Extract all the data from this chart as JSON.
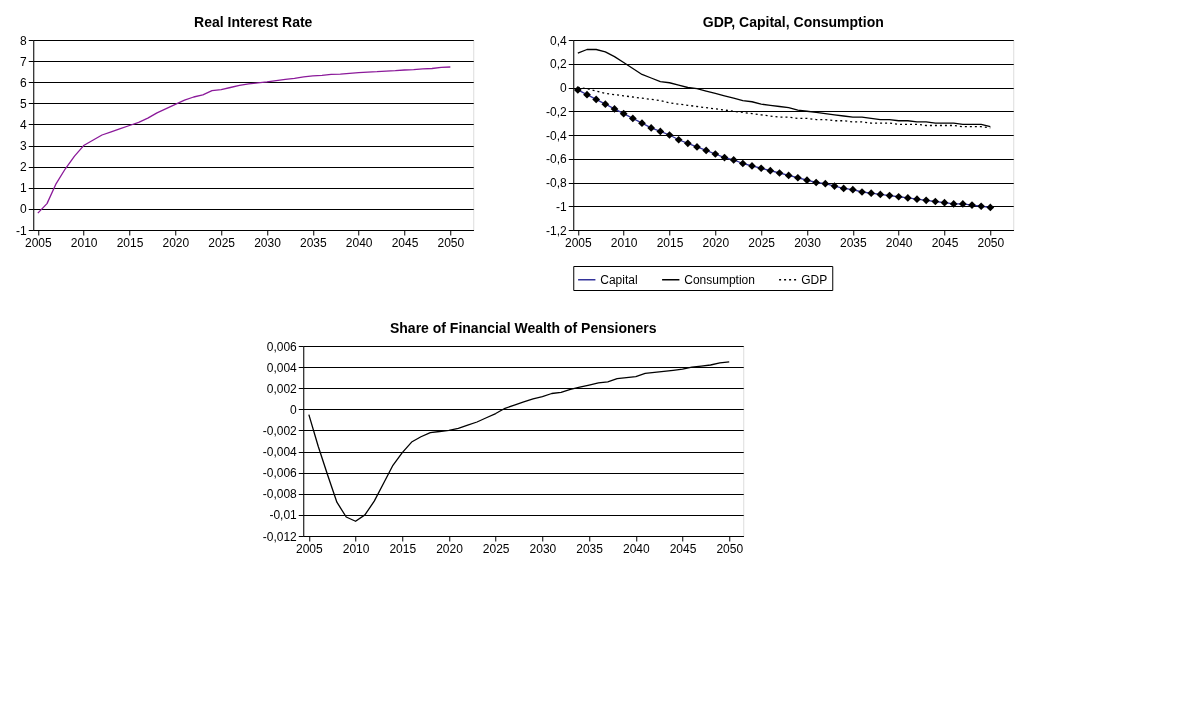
{
  "chart_data": [
    {
      "type": "line",
      "title": "Real Interest Rate",
      "x": [
        2005,
        2006,
        2007,
        2008,
        2009,
        2010,
        2011,
        2012,
        2013,
        2014,
        2015,
        2016,
        2017,
        2018,
        2019,
        2020,
        2021,
        2022,
        2023,
        2024,
        2025,
        2026,
        2027,
        2028,
        2029,
        2030,
        2031,
        2032,
        2033,
        2034,
        2035,
        2036,
        2037,
        2038,
        2039,
        2040,
        2041,
        2042,
        2043,
        2044,
        2045,
        2046,
        2047,
        2048,
        2049,
        2050
      ],
      "series": [
        {
          "color": "#8b1a9a",
          "values": [
            -0.2,
            0.25,
            1.2,
            1.9,
            2.5,
            3.0,
            3.25,
            3.5,
            3.65,
            3.8,
            3.95,
            4.1,
            4.3,
            4.55,
            4.75,
            4.95,
            5.15,
            5.3,
            5.4,
            5.6,
            5.65,
            5.75,
            5.85,
            5.92,
            5.97,
            6.02,
            6.08,
            6.13,
            6.18,
            6.25,
            6.3,
            6.32,
            6.37,
            6.38,
            6.42,
            6.45,
            6.48,
            6.5,
            6.53,
            6.55,
            6.58,
            6.6,
            6.63,
            6.65,
            6.7,
            6.72
          ]
        }
      ],
      "xlim": [
        2004.5,
        2052.5
      ],
      "xticks": [
        2005,
        2010,
        2015,
        2020,
        2025,
        2030,
        2035,
        2040,
        2045,
        2050
      ],
      "ylim": [
        -1,
        8
      ],
      "yticks": [
        -1,
        0,
        1,
        2,
        3,
        4,
        5,
        6,
        7,
        8
      ],
      "grid": "y",
      "legend": false
    },
    {
      "type": "line",
      "title": "GDP, Capital, Consumption",
      "x": [
        2005,
        2006,
        2007,
        2008,
        2009,
        2010,
        2011,
        2012,
        2013,
        2014,
        2015,
        2016,
        2017,
        2018,
        2019,
        2020,
        2021,
        2022,
        2023,
        2024,
        2025,
        2026,
        2027,
        2028,
        2029,
        2030,
        2031,
        2032,
        2033,
        2034,
        2035,
        2036,
        2037,
        2038,
        2039,
        2040,
        2041,
        2042,
        2043,
        2044,
        2045,
        2046,
        2047,
        2048,
        2049,
        2050
      ],
      "series": [
        {
          "name": "Capital",
          "color": "#33339a",
          "marker": "diamond",
          "line_style": "solid",
          "values": [
            -0.02,
            -0.06,
            -0.1,
            -0.14,
            -0.18,
            -0.22,
            -0.26,
            -0.3,
            -0.34,
            -0.37,
            -0.4,
            -0.44,
            -0.47,
            -0.5,
            -0.53,
            -0.56,
            -0.59,
            -0.61,
            -0.64,
            -0.66,
            -0.68,
            -0.7,
            -0.72,
            -0.74,
            -0.76,
            -0.78,
            -0.8,
            -0.81,
            -0.83,
            -0.85,
            -0.86,
            -0.88,
            -0.89,
            -0.9,
            -0.91,
            -0.92,
            -0.93,
            -0.94,
            -0.95,
            -0.96,
            -0.97,
            -0.98,
            -0.98,
            -0.99,
            -1.0,
            -1.01
          ]
        },
        {
          "name": "Consumption",
          "color": "#000000",
          "line_style": "solid",
          "values": [
            0.29,
            0.32,
            0.32,
            0.3,
            0.26,
            0.21,
            0.16,
            0.11,
            0.08,
            0.05,
            0.04,
            0.02,
            0.0,
            -0.01,
            -0.03,
            -0.05,
            -0.07,
            -0.09,
            -0.11,
            -0.12,
            -0.14,
            -0.15,
            -0.16,
            -0.17,
            -0.19,
            -0.2,
            -0.21,
            -0.22,
            -0.23,
            -0.24,
            -0.25,
            -0.25,
            -0.26,
            -0.27,
            -0.27,
            -0.28,
            -0.28,
            -0.29,
            -0.29,
            -0.3,
            -0.3,
            -0.3,
            -0.31,
            -0.31,
            -0.31,
            -0.33
          ]
        },
        {
          "name": "GDP",
          "color": "#000000",
          "line_style": "dotted",
          "values": [
            0.0,
            -0.01,
            -0.03,
            -0.05,
            -0.06,
            -0.07,
            -0.08,
            -0.09,
            -0.1,
            -0.11,
            -0.13,
            -0.14,
            -0.15,
            -0.16,
            -0.17,
            -0.18,
            -0.19,
            -0.2,
            -0.21,
            -0.22,
            -0.23,
            -0.24,
            -0.25,
            -0.25,
            -0.26,
            -0.26,
            -0.27,
            -0.27,
            -0.28,
            -0.28,
            -0.29,
            -0.29,
            -0.3,
            -0.3,
            -0.3,
            -0.31,
            -0.31,
            -0.31,
            -0.32,
            -0.32,
            -0.32,
            -0.32,
            -0.33,
            -0.33,
            -0.33,
            -0.34
          ]
        }
      ],
      "xlim": [
        2004.5,
        2052.5
      ],
      "xticks": [
        2005,
        2010,
        2015,
        2020,
        2025,
        2030,
        2035,
        2040,
        2045,
        2050
      ],
      "ylim": [
        -1.2,
        0.4
      ],
      "yticks": [
        {
          "value": -1.2,
          "label": "-1,2"
        },
        {
          "value": -1,
          "label": "-1"
        },
        {
          "value": -0.8,
          "label": "-0,8"
        },
        {
          "value": -0.6,
          "label": "-0,6"
        },
        {
          "value": -0.4,
          "label": "-0,4"
        },
        {
          "value": -0.2,
          "label": "-0,2"
        },
        {
          "value": 0,
          "label": "0"
        },
        {
          "value": 0.2,
          "label": "0,2"
        },
        {
          "value": 0.4,
          "label": "0,4"
        }
      ],
      "grid": "y",
      "legend": "bottom"
    },
    {
      "type": "line",
      "title": "Share of Financial Wealth of Pensioners",
      "x": [
        2005,
        2006,
        2007,
        2008,
        2009,
        2010,
        2011,
        2012,
        2013,
        2014,
        2015,
        2016,
        2017,
        2018,
        2019,
        2020,
        2021,
        2022,
        2023,
        2024,
        2025,
        2026,
        2027,
        2028,
        2029,
        2030,
        2031,
        2032,
        2033,
        2034,
        2035,
        2036,
        2037,
        2038,
        2039,
        2040,
        2041,
        2042,
        2043,
        2044,
        2045,
        2046,
        2047,
        2048,
        2049,
        2050
      ],
      "series": [
        {
          "color": "#000000",
          "values": [
            -0.0005,
            -0.0035,
            -0.0062,
            -0.0088,
            -0.0102,
            -0.0106,
            -0.01,
            -0.0087,
            -0.007,
            -0.0053,
            -0.0041,
            -0.0031,
            -0.0026,
            -0.0022,
            -0.0021,
            -0.002,
            -0.0018,
            -0.0015,
            -0.0012,
            -0.0008,
            -0.0004,
            0.0001,
            0.0004,
            0.0007,
            0.001,
            0.0012,
            0.0015,
            0.0016,
            0.0019,
            0.0021,
            0.0023,
            0.0025,
            0.0026,
            0.0029,
            0.003,
            0.0031,
            0.0034,
            0.0035,
            0.0036,
            0.0037,
            0.0038,
            0.004,
            0.0041,
            0.0042,
            0.0044,
            0.0045
          ]
        }
      ],
      "xlim": [
        2004.4,
        2051.5
      ],
      "xticks": [
        2005,
        2010,
        2015,
        2020,
        2025,
        2030,
        2035,
        2040,
        2045,
        2050
      ],
      "ylim": [
        -0.012,
        0.006
      ],
      "yticks": [
        {
          "value": -0.012,
          "label": "-0,012"
        },
        {
          "value": -0.01,
          "label": "-0,01"
        },
        {
          "value": -0.008,
          "label": "-0,008"
        },
        {
          "value": -0.006,
          "label": "-0,006"
        },
        {
          "value": -0.004,
          "label": "-0,004"
        },
        {
          "value": -0.002,
          "label": "-0,002"
        },
        {
          "value": 0,
          "label": "0"
        },
        {
          "value": 0.002,
          "label": "0,002"
        },
        {
          "value": 0.004,
          "label": "0,004"
        },
        {
          "value": 0.006,
          "label": "0,006"
        }
      ],
      "grid": "y",
      "legend": false
    }
  ]
}
